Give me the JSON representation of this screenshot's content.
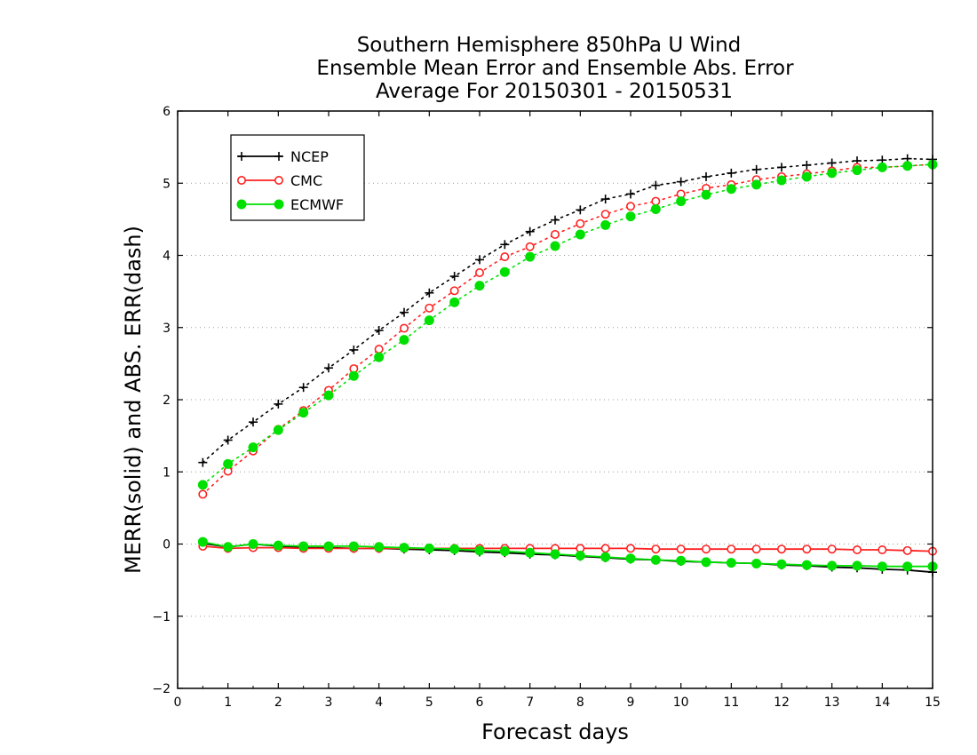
{
  "chart_data": {
    "type": "line",
    "title_lines": [
      "Southern Hemisphere 850hPa U Wind",
      "Ensemble Mean Error and Ensemble Abs. Error",
      "Average For 20150301 - 20150531"
    ],
    "xlabel": "Forecast days",
    "ylabel": "MERR(solid) and ABS. ERR(dash)",
    "xlim": [
      0,
      15
    ],
    "ylim": [
      -2,
      6
    ],
    "xticks": [
      "0",
      "1",
      "2",
      "3",
      "4",
      "5",
      "6",
      "7",
      "8",
      "9",
      "10",
      "11",
      "12",
      "13",
      "14",
      "15"
    ],
    "yticks": [
      "-2",
      "-1",
      "0",
      "1",
      "2",
      "3",
      "4",
      "5",
      "6"
    ],
    "grid": "horizontal dotted at integer y",
    "legend_position": "top-left",
    "x": [
      0.5,
      1,
      1.5,
      2,
      2.5,
      3,
      3.5,
      4,
      4.5,
      5,
      5.5,
      6,
      6.5,
      7,
      7.5,
      8,
      8.5,
      9,
      9.5,
      10,
      10.5,
      11,
      11.5,
      12,
      12.5,
      13,
      13.5,
      14,
      14.5,
      15
    ],
    "series": [
      {
        "name": "NCEP",
        "color": "#000000",
        "marker": "plus",
        "abs_err": [
          1.13,
          1.44,
          1.69,
          1.94,
          2.17,
          2.44,
          2.69,
          2.96,
          3.21,
          3.48,
          3.71,
          3.94,
          4.15,
          4.33,
          4.49,
          4.63,
          4.78,
          4.85,
          4.97,
          5.02,
          5.09,
          5.14,
          5.19,
          5.22,
          5.25,
          5.28,
          5.31,
          5.32,
          5.34,
          5.33
        ],
        "mean_err": [
          0.01,
          -0.04,
          0.0,
          -0.03,
          -0.05,
          -0.05,
          -0.06,
          -0.06,
          -0.07,
          -0.08,
          -0.09,
          -0.11,
          -0.12,
          -0.14,
          -0.15,
          -0.17,
          -0.19,
          -0.21,
          -0.22,
          -0.24,
          -0.25,
          -0.26,
          -0.27,
          -0.29,
          -0.3,
          -0.32,
          -0.33,
          -0.35,
          -0.36,
          -0.39
        ]
      },
      {
        "name": "CMC",
        "color": "#ff2020",
        "marker": "open-circle",
        "abs_err": [
          0.69,
          1.01,
          1.29,
          1.59,
          1.85,
          2.13,
          2.43,
          2.7,
          2.99,
          3.27,
          3.51,
          3.76,
          3.98,
          4.12,
          4.29,
          4.44,
          4.57,
          4.68,
          4.75,
          4.85,
          4.93,
          4.98,
          5.05,
          5.09,
          5.13,
          5.17,
          5.22,
          5.22,
          5.24,
          5.26
        ],
        "mean_err": [
          -0.03,
          -0.06,
          -0.05,
          -0.05,
          -0.06,
          -0.06,
          -0.06,
          -0.06,
          -0.06,
          -0.06,
          -0.06,
          -0.06,
          -0.06,
          -0.06,
          -0.06,
          -0.06,
          -0.06,
          -0.06,
          -0.07,
          -0.07,
          -0.07,
          -0.07,
          -0.07,
          -0.07,
          -0.07,
          -0.07,
          -0.08,
          -0.08,
          -0.09,
          -0.1
        ]
      },
      {
        "name": "ECMWF",
        "color": "#00e000",
        "marker": "filled-circle",
        "abs_err": [
          0.82,
          1.11,
          1.34,
          1.58,
          1.82,
          2.06,
          2.33,
          2.59,
          2.83,
          3.1,
          3.35,
          3.58,
          3.77,
          3.98,
          4.13,
          4.29,
          4.42,
          4.54,
          4.64,
          4.75,
          4.84,
          4.92,
          4.98,
          5.04,
          5.09,
          5.14,
          5.18,
          5.22,
          5.24,
          5.26
        ],
        "mean_err": [
          0.03,
          -0.04,
          0.0,
          -0.02,
          -0.03,
          -0.03,
          -0.03,
          -0.04,
          -0.05,
          -0.06,
          -0.07,
          -0.09,
          -0.1,
          -0.12,
          -0.14,
          -0.16,
          -0.18,
          -0.2,
          -0.22,
          -0.23,
          -0.25,
          -0.26,
          -0.27,
          -0.28,
          -0.29,
          -0.3,
          -0.3,
          -0.31,
          -0.31,
          -0.31
        ]
      }
    ]
  }
}
